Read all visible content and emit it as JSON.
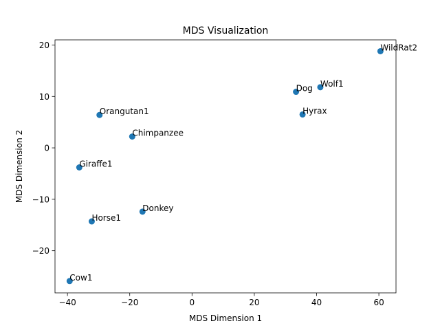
{
  "chart_data": {
    "type": "scatter",
    "title": "MDS Visualization",
    "xlabel": "MDS Dimension 1",
    "ylabel": "MDS Dimension 2",
    "xlim": [
      -44,
      65.5
    ],
    "ylim": [
      -28.2,
      21
    ],
    "xticks": [
      -40,
      -20,
      0,
      20,
      40,
      60
    ],
    "yticks": [
      -20,
      -10,
      0,
      10,
      20
    ],
    "grid": false,
    "legend": "none",
    "point_color": "#1f77b4",
    "points": [
      {
        "label": "WildRat2",
        "x": 60.5,
        "y": 18.8
      },
      {
        "label": "Wolf1",
        "x": 41.2,
        "y": 11.8
      },
      {
        "label": "Dog",
        "x": 33.4,
        "y": 10.9
      },
      {
        "label": "Hyrax",
        "x": 35.5,
        "y": 6.5
      },
      {
        "label": "Orangutan1",
        "x": -29.7,
        "y": 6.4
      },
      {
        "label": "Chimpanzee",
        "x": -19.2,
        "y": 2.2
      },
      {
        "label": "Giraffe1",
        "x": -36.2,
        "y": -3.8
      },
      {
        "label": "Donkey",
        "x": -15.9,
        "y": -12.4
      },
      {
        "label": "Horse1",
        "x": -32.2,
        "y": -14.3
      },
      {
        "label": "Cow1",
        "x": -39.3,
        "y": -25.9
      }
    ]
  }
}
